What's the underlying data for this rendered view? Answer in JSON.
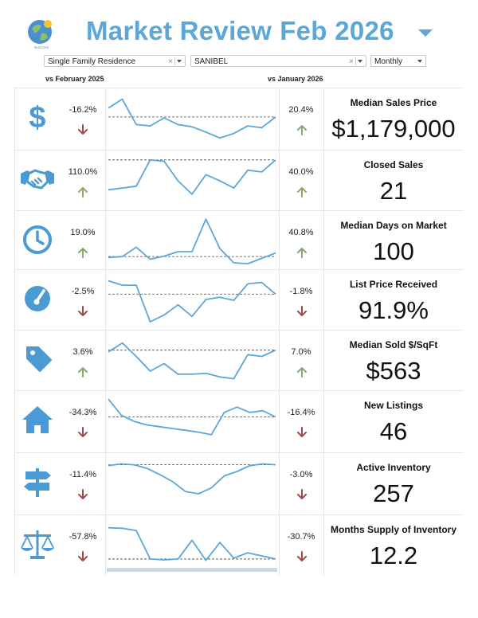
{
  "header": {
    "title": "Market Review",
    "period": "Feb 2026"
  },
  "filters": {
    "property_type": "Single Family Residence",
    "area": "SANIBEL",
    "frequency": "Monthly"
  },
  "comparisons": {
    "left_label": "vs February 2025",
    "right_label": "vs January 2026"
  },
  "colors": {
    "accent": "#5aa7d8",
    "up": "#8aa86b",
    "down": "#9b4a4a",
    "line": "#5aa7d8"
  },
  "metrics": [
    {
      "name": "Median Sales Price",
      "value": "$1,179,000",
      "icon": "dollar-icon",
      "yoy": "-16.2%",
      "yoy_dir": "down",
      "mom": "20.4%",
      "mom_dir": "up",
      "spark": [
        0.72,
        0.92,
        0.35,
        0.32,
        0.5,
        0.35,
        0.3,
        0.18,
        0.05,
        0.15,
        0.32,
        0.28,
        0.52
      ],
      "ref": 0.52
    },
    {
      "name": "Closed Sales",
      "value": "21",
      "icon": "handshake-icon",
      "yoy": "110.0%",
      "yoy_dir": "up",
      "mom": "40.0%",
      "mom_dir": "up",
      "spark": [
        0.28,
        0.32,
        0.36,
        0.95,
        0.92,
        0.48,
        0.18,
        0.62,
        0.48,
        0.32,
        0.72,
        0.68,
        0.95
      ],
      "ref": 0.95
    },
    {
      "name": "Median Days on Market",
      "value": "100",
      "icon": "clock-icon",
      "yoy": "19.0%",
      "yoy_dir": "up",
      "mom": "40.8%",
      "mom_dir": "up",
      "spark": [
        0.12,
        0.14,
        0.35,
        0.08,
        0.15,
        0.25,
        0.25,
        0.98,
        0.32,
        0.0,
        -0.02,
        0.1,
        0.22
      ],
      "ref": 0.14
    },
    {
      "name": "List Price Received",
      "value": "91.9%",
      "icon": "gauge-icon",
      "yoy": "-2.5%",
      "yoy_dir": "down",
      "mom": "-1.8%",
      "mom_dir": "down",
      "spark": [
        0.92,
        0.82,
        0.82,
        0.0,
        0.15,
        0.38,
        0.12,
        0.5,
        0.55,
        0.48,
        0.85,
        0.88,
        0.62
      ],
      "ref": 0.62
    },
    {
      "name": "Median Sold $/SqFt",
      "value": "$563",
      "icon": "tag-icon",
      "yoy": "3.6%",
      "yoy_dir": "up",
      "mom": "7.0%",
      "mom_dir": "up",
      "spark": [
        0.68,
        0.88,
        0.58,
        0.25,
        0.42,
        0.18,
        0.18,
        0.2,
        0.12,
        0.08,
        0.62,
        0.58,
        0.72
      ],
      "ref": 0.72
    },
    {
      "name": "New Listings",
      "value": "46",
      "icon": "house-icon",
      "yoy": "-34.3%",
      "yoy_dir": "down",
      "mom": "-16.4%",
      "mom_dir": "down",
      "spark": [
        0.98,
        0.62,
        0.48,
        0.4,
        0.36,
        0.32,
        0.28,
        0.24,
        0.18,
        0.68,
        0.8,
        0.68,
        0.72,
        0.58
      ],
      "ref": 0.58
    },
    {
      "name": "Active Inventory",
      "value": "257",
      "icon": "signpost-icon",
      "yoy": "-11.4%",
      "yoy_dir": "down",
      "mom": "-3.0%",
      "mom_dir": "down",
      "spark": [
        0.88,
        0.92,
        0.9,
        0.82,
        0.68,
        0.52,
        0.3,
        0.25,
        0.38,
        0.65,
        0.75,
        0.88,
        0.92,
        0.9
      ],
      "ref": 0.9
    },
    {
      "name": "Months Supply of Inventory",
      "value": "12.2",
      "icon": "scales-icon",
      "yoy": "-57.8%",
      "yoy_dir": "down",
      "mom": "-30.7%",
      "mom_dir": "down",
      "spark": [
        0.88,
        0.87,
        0.82,
        0.18,
        0.16,
        0.18,
        0.6,
        0.15,
        0.55,
        0.2,
        0.32,
        0.25,
        0.18
      ],
      "ref": 0.18
    }
  ]
}
